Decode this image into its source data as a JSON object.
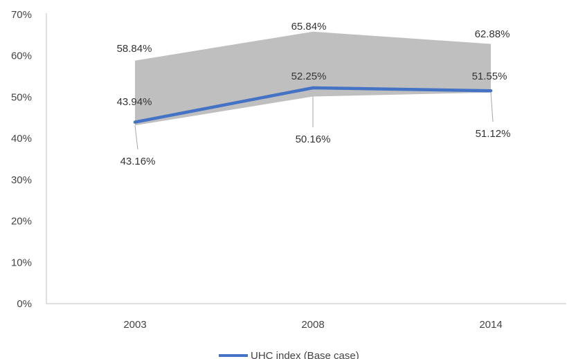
{
  "chart_data": {
    "type": "area",
    "categories": [
      "2003",
      "2008",
      "2014"
    ],
    "ylim": [
      0,
      0.7
    ],
    "y_ticks": [
      "0%",
      "10%",
      "20%",
      "30%",
      "40%",
      "50%",
      "60%",
      "70%"
    ],
    "series": [
      {
        "name": "UHC index (Base case)",
        "type": "line",
        "color": "#4472C4",
        "values": [
          0.4394,
          0.5225,
          0.5155
        ],
        "labels": [
          "43.94%",
          "52.25%",
          "51.55%"
        ]
      }
    ],
    "range_band": {
      "color": "#BFBFBF",
      "upper": [
        0.5884,
        0.6584,
        0.6288
      ],
      "upper_labels": [
        "58.84%",
        "65.84%",
        "62.88%"
      ],
      "lower": [
        0.4316,
        0.5016,
        0.5112
      ],
      "lower_labels": [
        "43.16%",
        "50.16%",
        "51.12%"
      ]
    },
    "grid": false,
    "legend_position": "bottom"
  }
}
